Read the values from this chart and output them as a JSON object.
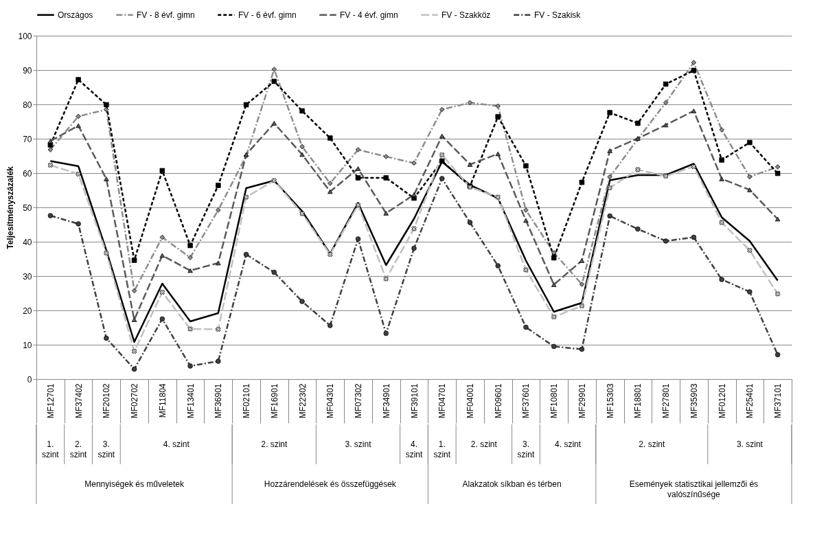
{
  "chart_data": {
    "type": "line",
    "ylabel": "Teljesítményszázalék",
    "categories": [
      "MF12701",
      "MF37402",
      "MF20102",
      "MF02702",
      "MF11804",
      "MF13401",
      "MF36901",
      "MF02101",
      "MF16901",
      "MF22302",
      "MF04301",
      "MF07302",
      "MF34901",
      "MF39101",
      "MF04701",
      "MF04001",
      "MF09601",
      "MF37601",
      "MF10801",
      "MF29901",
      "MF15303",
      "MF18801",
      "MF27801",
      "MF35903",
      "MF01201",
      "MF25401",
      "MF37101"
    ],
    "series": [
      {
        "name": "Országos",
        "color": "#000000",
        "marker": "none",
        "line_style": "solid",
        "values": [
          63.5,
          62,
          37.5,
          10.8,
          27.8,
          16.8,
          19.2,
          55.6,
          57.8,
          48.9,
          36.5,
          51.3,
          33.2,
          46.7,
          63.3,
          56.5,
          52.7,
          34.5,
          19.6,
          22.2,
          57.9,
          59.4,
          59.4,
          62.7,
          47.1,
          40.2,
          28.7
        ]
      },
      {
        "name": "FV - 8 évf. gimn",
        "color": "#8c8c8c",
        "marker": "diamond",
        "line_style": "dashed",
        "values": [
          66.8,
          76.5,
          78.5,
          25.7,
          41.3,
          35.4,
          49.2,
          65,
          90.2,
          67.7,
          57,
          66.8,
          64.8,
          62.9,
          78.5,
          80.5,
          79.5,
          49.2,
          36.8,
          27.6,
          58.9,
          69.9,
          80.5,
          92.2,
          72.6,
          58.9,
          61.8
        ]
      },
      {
        "name": "FV - 6 évf. gimn",
        "color": "#000000",
        "marker": "square",
        "line_style": "dashed",
        "values": [
          68.2,
          87.2,
          79.9,
          34.6,
          60.7,
          38.9,
          56.4,
          79.9,
          86.7,
          78.1,
          70.2,
          58.6,
          58.6,
          52.7,
          63.5,
          56.2,
          76.4,
          62.1,
          35.3,
          57.3,
          77.6,
          74.5,
          85.9,
          89.9,
          63.8,
          68.9,
          59.9
        ]
      },
      {
        "name": "FV - 4 évf. gimn",
        "color": "#5a5a5a",
        "marker": "triangle",
        "line_style": "dashed",
        "values": [
          69.3,
          73.8,
          58.3,
          17.3,
          36,
          31.6,
          33.8,
          65.4,
          74.5,
          65.4,
          54.6,
          61.3,
          48.3,
          53.7,
          70.8,
          62.5,
          65.6,
          46.2,
          27.5,
          34.5,
          66.5,
          70.1,
          74,
          78.1,
          58.3,
          55.1,
          46.6
        ]
      },
      {
        "name": "FV - Szakköz",
        "color": "#c0c0c0",
        "marker": "cross",
        "line_style": "dashed",
        "values": [
          62.3,
          59.7,
          36.7,
          8.1,
          25.3,
          14.6,
          14.5,
          53,
          57.8,
          48.2,
          36.3,
          50.7,
          29.2,
          43.8,
          65.3,
          55.9,
          53,
          31.8,
          18.1,
          21.3,
          55.7,
          61,
          59.1,
          61.9,
          45.6,
          37.5,
          24.8
        ]
      },
      {
        "name": "FV - Szakisk",
        "color": "#404040",
        "marker": "circle",
        "line_style": "dashed",
        "values": [
          47.6,
          45.2,
          11.9,
          2.9,
          17.5,
          3.8,
          5.2,
          36.3,
          31.1,
          22.6,
          15.6,
          40.8,
          13.3,
          38.1,
          58.4,
          45.6,
          33,
          15.1,
          9.5,
          8.7,
          47.5,
          43.7,
          40.2,
          41.3,
          29,
          25.4,
          7.1
        ]
      }
    ],
    "ylim": [
      0,
      100
    ],
    "yticks": [
      0,
      10,
      20,
      30,
      40,
      50,
      60,
      70,
      80,
      90,
      100
    ],
    "grid": "y",
    "legend": "top",
    "annotations": [
      "1. szint",
      "2. szint",
      "3. szint",
      "4. szint",
      "2. szint",
      "3. szint",
      "4. szint",
      "1. szint",
      "2. szint",
      "3. szint",
      "4. szint",
      "2. szint",
      "3. szint",
      "Mennyiségek és műveletek",
      "Hozzárendelések és összefüggések",
      "Alakzatok síkban és térben",
      "Események statisztikai jellemzői és valószínűsége"
    ]
  }
}
